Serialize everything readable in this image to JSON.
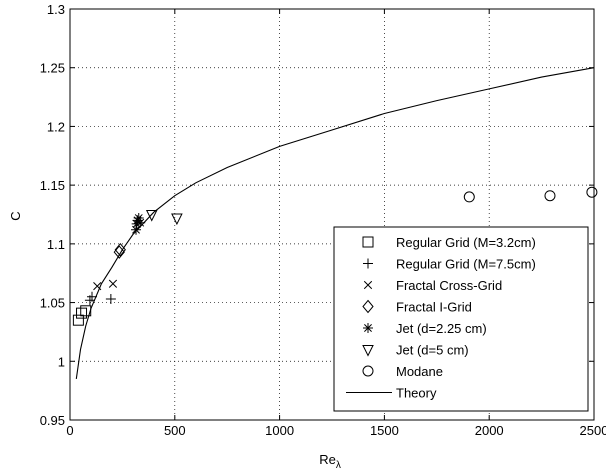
{
  "chart_data": {
    "type": "scatter",
    "title": "",
    "xlabel": "Re",
    "xlabel_sub": "λ",
    "ylabel": "C",
    "xlim": [
      0,
      2500
    ],
    "ylim": [
      0.95,
      1.3
    ],
    "grid": true,
    "legend_position": "bottom-right",
    "x_ticks": [
      0,
      500,
      1000,
      1500,
      2000,
      2500
    ],
    "y_ticks": [
      0.95,
      1.0,
      1.05,
      1.1,
      1.15,
      1.2,
      1.25,
      1.3
    ],
    "x_tick_labels": [
      "0",
      "500",
      "1000",
      "1500",
      "2000",
      "2500"
    ],
    "y_tick_labels": [
      "0.95",
      "1",
      "1.05",
      "1.1",
      "1.15",
      "1.2",
      "1.25",
      "1.3"
    ],
    "series": [
      {
        "name": "Regular Grid (M=3.2cm)",
        "marker": "square",
        "points": [
          [
            40,
            1.035
          ],
          [
            55,
            1.041
          ],
          [
            75,
            1.043
          ]
        ]
      },
      {
        "name": "Regular Grid (M=7.5cm)",
        "marker": "plus",
        "points": [
          [
            95,
            1.052
          ],
          [
            105,
            1.055
          ],
          [
            195,
            1.053
          ]
        ]
      },
      {
        "name": "Fractal Cross-Grid",
        "marker": "x",
        "points": [
          [
            130,
            1.064
          ],
          [
            205,
            1.066
          ]
        ]
      },
      {
        "name": "Fractal I-Grid",
        "marker": "diamond",
        "points": [
          [
            235,
            1.093
          ],
          [
            240,
            1.095
          ]
        ]
      },
      {
        "name": "Jet (d=2.25 cm)",
        "marker": "star",
        "points": [
          [
            315,
            1.112
          ],
          [
            318,
            1.117
          ],
          [
            322,
            1.12
          ],
          [
            328,
            1.122
          ],
          [
            335,
            1.118
          ]
        ]
      },
      {
        "name": "Jet (d=5 cm)",
        "marker": "triangle-down",
        "points": [
          [
            390,
            1.125
          ],
          [
            510,
            1.122
          ]
        ]
      },
      {
        "name": "Modane",
        "marker": "circle",
        "points": [
          [
            1905,
            1.14
          ],
          [
            2290,
            1.141
          ],
          [
            2490,
            1.144
          ]
        ]
      },
      {
        "name": "Theory",
        "marker": "line",
        "points": [
          [
            30,
            0.985
          ],
          [
            50,
            1.01
          ],
          [
            75,
            1.03
          ],
          [
            100,
            1.045
          ],
          [
            150,
            1.066
          ],
          [
            200,
            1.08
          ],
          [
            250,
            1.095
          ],
          [
            300,
            1.108
          ],
          [
            400,
            1.127
          ],
          [
            500,
            1.141
          ],
          [
            600,
            1.152
          ],
          [
            750,
            1.165
          ],
          [
            1000,
            1.183
          ],
          [
            1250,
            1.197
          ],
          [
            1500,
            1.211
          ],
          [
            1750,
            1.222
          ],
          [
            2000,
            1.232
          ],
          [
            2250,
            1.242
          ],
          [
            2500,
            1.25
          ]
        ]
      }
    ]
  }
}
